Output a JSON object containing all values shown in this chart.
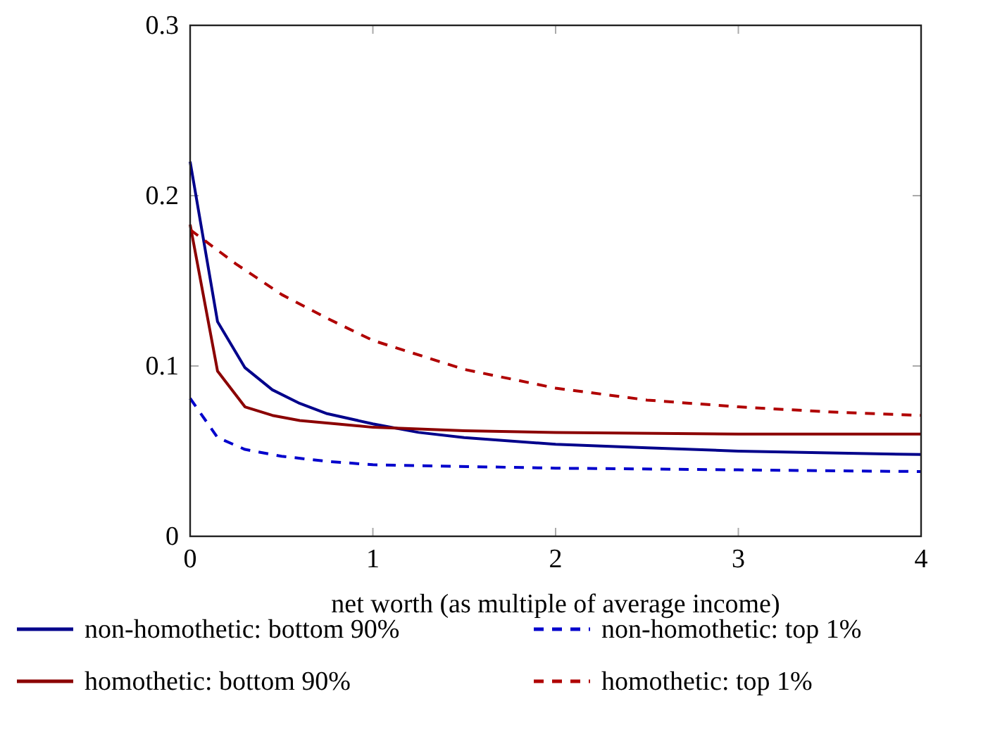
{
  "chart_data": {
    "type": "line",
    "xlabel": "net worth (as multiple of average income)",
    "xlim": [
      0,
      4
    ],
    "xticks": [
      0,
      1,
      2,
      3,
      4
    ],
    "ylim": [
      0,
      0.3
    ],
    "yticks": [
      0,
      0.1,
      0.2,
      0.3
    ],
    "legend": "bottom",
    "grid": false,
    "series": [
      {
        "name": "non-homothetic: bottom 90%",
        "color": "#00008b",
        "line_style": "solid",
        "x": [
          0,
          0.15,
          0.3,
          0.45,
          0.6,
          0.75,
          1,
          1.25,
          1.5,
          2,
          2.5,
          3,
          3.5,
          4
        ],
        "values": [
          0.22,
          0.126,
          0.099,
          0.086,
          0.078,
          0.072,
          0.066,
          0.061,
          0.058,
          0.054,
          0.052,
          0.05,
          0.049,
          0.048
        ]
      },
      {
        "name": "non-homothetic: top 1%",
        "color": "#0000cc",
        "line_style": "dashed",
        "x": [
          0,
          0.15,
          0.3,
          0.5,
          0.75,
          1,
          2,
          3,
          4
        ],
        "values": [
          0.081,
          0.058,
          0.051,
          0.047,
          0.044,
          0.042,
          0.04,
          0.039,
          0.038
        ]
      },
      {
        "name": "homothetic: bottom 90%",
        "color": "#8b0000",
        "line_style": "solid",
        "x": [
          0,
          0.15,
          0.3,
          0.45,
          0.6,
          0.8,
          1,
          1.5,
          2,
          3,
          4
        ],
        "values": [
          0.183,
          0.097,
          0.076,
          0.071,
          0.068,
          0.066,
          0.064,
          0.062,
          0.061,
          0.06,
          0.06
        ]
      },
      {
        "name": "homothetic: top 1%",
        "color": "#b00000",
        "line_style": "dashed",
        "x": [
          0,
          0.25,
          0.5,
          0.75,
          1,
          1.5,
          2,
          2.5,
          3,
          3.5,
          4
        ],
        "values": [
          0.18,
          0.16,
          0.142,
          0.128,
          0.115,
          0.098,
          0.087,
          0.08,
          0.076,
          0.073,
          0.071
        ]
      }
    ]
  }
}
